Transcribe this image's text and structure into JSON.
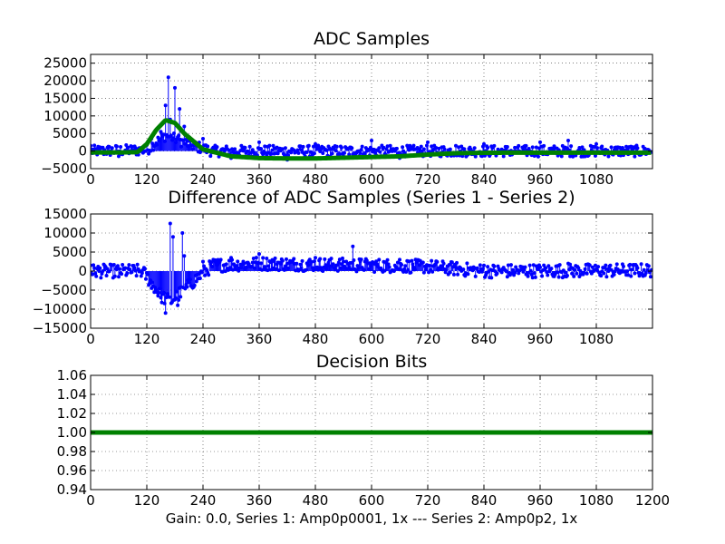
{
  "chart_data": [
    {
      "type": "line",
      "title": "ADC Samples",
      "xlabel": "",
      "ylabel": "",
      "xlim": [
        0,
        1200
      ],
      "ylim": [
        -5000,
        27500
      ],
      "xticks": [
        0,
        120,
        240,
        360,
        480,
        600,
        720,
        840,
        960,
        1080
      ],
      "xtick_labels": [
        "0",
        "120",
        "240",
        "360",
        "480",
        "600",
        "720",
        "840",
        "960",
        "1080"
      ],
      "yticks": [
        -5000,
        0,
        5000,
        10000,
        15000,
        20000,
        25000
      ],
      "ytick_labels": [
        "−5000",
        "0",
        "5000",
        "10000",
        "15000",
        "20000",
        "25000"
      ],
      "grid": true,
      "series": [
        {
          "style": "stem",
          "color": "#0000ff",
          "x": [
            0,
            60,
            110,
            130,
            150,
            160,
            165,
            170,
            180,
            185,
            190,
            200,
            210,
            240,
            300,
            360,
            420,
            480,
            540,
            600,
            660,
            720,
            780,
            840,
            900,
            960,
            1020,
            1080,
            1199
          ],
          "y": [
            1500,
            -1500,
            500,
            3500,
            5500,
            13000,
            21000,
            9000,
            18000,
            4000,
            12000,
            7000,
            1500,
            3500,
            -2000,
            2500,
            -2500,
            2000,
            -1500,
            3000,
            -2000,
            2500,
            1500,
            2000,
            -1000,
            2500,
            3000,
            2000,
            1000
          ]
        },
        {
          "style": "line",
          "color": "#008000",
          "x": [
            0,
            60,
            100,
            120,
            140,
            160,
            180,
            200,
            240,
            300,
            360,
            420,
            480,
            540,
            600,
            660,
            720,
            780,
            840,
            900,
            960,
            1020,
            1080,
            1140,
            1199
          ],
          "y": [
            -400,
            -400,
            -300,
            2000,
            6000,
            8800,
            8000,
            5000,
            500,
            -1500,
            -2000,
            -2100,
            -2100,
            -1900,
            -1700,
            -1500,
            -1000,
            -600,
            -500,
            -450,
            -450,
            -450,
            -450,
            -450,
            -450
          ]
        }
      ]
    },
    {
      "type": "line",
      "title": "Difference of ADC Samples (Series 1 - Series 2)",
      "xlabel": "",
      "ylabel": "",
      "xlim": [
        0,
        1200
      ],
      "ylim": [
        -15000,
        15000
      ],
      "xticks": [
        0,
        120,
        240,
        360,
        480,
        600,
        720,
        840,
        960,
        1080
      ],
      "xtick_labels": [
        "0",
        "120",
        "240",
        "360",
        "480",
        "600",
        "720",
        "840",
        "960",
        "1080"
      ],
      "yticks": [
        -15000,
        -10000,
        -5000,
        0,
        5000,
        10000,
        15000
      ],
      "ytick_labels": [
        "−15000",
        "−10000",
        "−5000",
        "0",
        "5000",
        "10000",
        "15000"
      ],
      "grid": true,
      "series": [
        {
          "style": "stem",
          "color": "#0000ff",
          "x": [
            0,
            60,
            110,
            130,
            150,
            160,
            170,
            175,
            185,
            195,
            200,
            210,
            240,
            300,
            360,
            420,
            480,
            540,
            560,
            600,
            660,
            720,
            780,
            840,
            900,
            960,
            1020,
            1080,
            1199
          ],
          "y": [
            1500,
            -1500,
            -500,
            -4500,
            -7000,
            -11000,
            12500,
            9000,
            -9000,
            10000,
            4000,
            -3000,
            2500,
            3500,
            4500,
            2000,
            3500,
            2500,
            6500,
            2000,
            3000,
            1500,
            1000,
            1500,
            -500,
            1000,
            2000,
            500,
            1500
          ]
        }
      ]
    },
    {
      "type": "line",
      "title": "Decision Bits",
      "xlabel": "Gain: 0.0, Series 1: Amp0p0001, 1x --- Series 2: Amp0p2, 1x",
      "ylabel": "",
      "xlim": [
        0,
        1200
      ],
      "ylim": [
        0.94,
        1.06
      ],
      "xticks": [
        0,
        120,
        240,
        360,
        480,
        600,
        720,
        840,
        960,
        1080,
        1200
      ],
      "xtick_labels": [
        "0",
        "120",
        "240",
        "360",
        "480",
        "600",
        "720",
        "840",
        "960",
        "1080",
        "1200"
      ],
      "yticks": [
        0.94,
        0.96,
        0.98,
        1.0,
        1.02,
        1.04,
        1.06
      ],
      "ytick_labels": [
        "0.94",
        "0.96",
        "0.98",
        "1.00",
        "1.02",
        "1.04",
        "1.06"
      ],
      "grid": true,
      "series": [
        {
          "style": "line",
          "color": "#008000",
          "x": [
            0,
            1200
          ],
          "y": [
            1.0,
            1.0
          ]
        }
      ]
    }
  ]
}
